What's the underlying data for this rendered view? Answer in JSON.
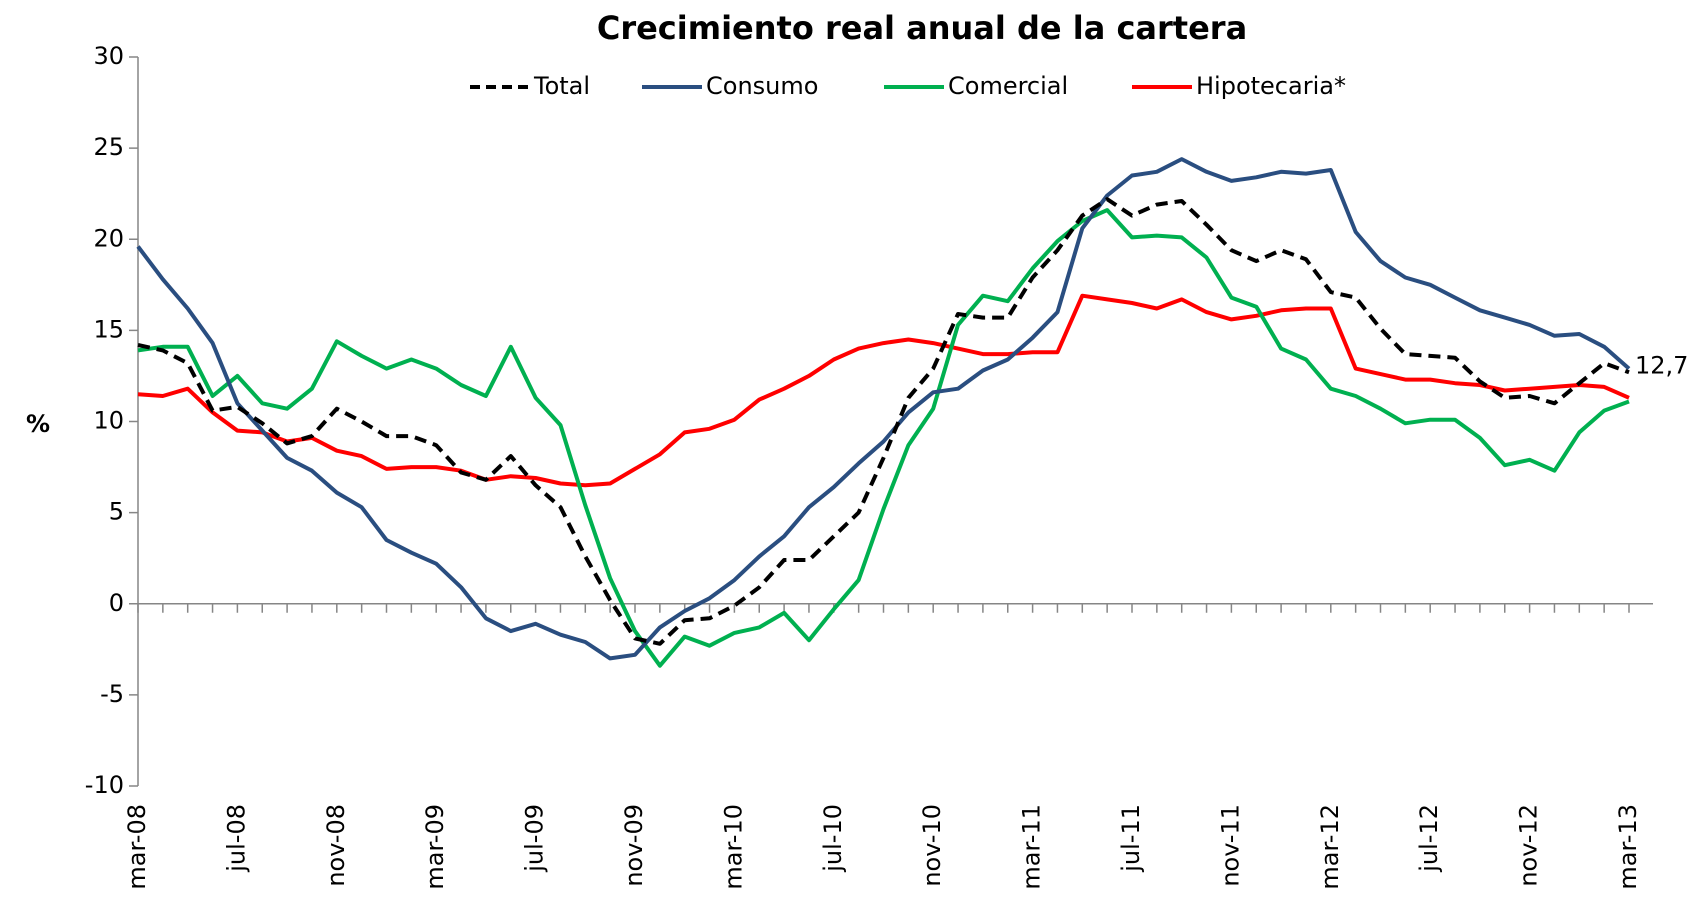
{
  "chart_data": {
    "type": "line",
    "title": "Crecimiento real anual de la cartera",
    "y_label": "%",
    "categories": [
      "mar-08",
      null,
      null,
      null,
      "jul-08",
      null,
      null,
      null,
      "nov-08",
      null,
      null,
      null,
      "mar-09",
      null,
      null,
      null,
      "jul-09",
      null,
      null,
      null,
      "nov-09",
      null,
      null,
      null,
      "mar-10",
      null,
      null,
      null,
      "jul-10",
      null,
      null,
      null,
      "nov-10",
      null,
      null,
      null,
      "mar-11",
      null,
      null,
      null,
      "jul-11",
      null,
      null,
      null,
      "nov-11",
      null,
      null,
      null,
      "mar-12",
      null,
      null,
      null,
      "jul-12",
      null,
      null,
      null,
      "nov-12",
      null,
      null,
      null,
      "mar-13"
    ],
    "series": [
      {
        "name": "Total",
        "color": "#000000",
        "dashed": true,
        "values": [
          14.2,
          13.9,
          13.2,
          10.6,
          10.8,
          9.9,
          8.8,
          9.2,
          10.7,
          10.0,
          9.2,
          9.2,
          8.7,
          7.2,
          6.8,
          8.1,
          6.5,
          5.3,
          2.6,
          0.2,
          -1.9,
          -2.2,
          -0.9,
          -0.8,
          -0.1,
          0.9,
          2.4,
          2.4,
          3.7,
          5.0,
          8.0,
          11.3,
          12.9,
          15.9,
          15.7,
          15.7,
          17.9,
          19.4,
          21.3,
          22.2,
          21.3,
          21.9,
          22.1,
          20.8,
          19.4,
          18.8,
          19.4,
          18.9,
          17.1,
          16.8,
          15.1,
          13.7,
          13.6,
          13.5,
          12.2,
          11.3,
          11.4,
          11.0,
          12.1,
          13.2,
          12.7
        ],
        "value_labels": [
          null,
          null,
          null,
          null,
          null,
          null,
          null,
          null,
          null,
          null,
          null,
          null,
          null,
          null,
          null,
          null,
          null,
          null,
          null,
          null,
          null,
          null,
          null,
          null,
          null,
          null,
          null,
          null,
          null,
          null,
          null,
          null,
          null,
          null,
          null,
          null,
          null,
          null,
          null,
          null,
          null,
          null,
          null,
          null,
          null,
          null,
          null,
          null,
          null,
          null,
          null,
          null,
          null,
          null,
          null,
          null,
          null,
          null,
          null,
          null,
          "12,7"
        ]
      },
      {
        "name": "Consumo",
        "color": "#2a4e80",
        "values": [
          19.6,
          17.8,
          16.2,
          14.3,
          11.0,
          9.5,
          8.0,
          7.3,
          6.1,
          5.3,
          3.5,
          2.8,
          2.2,
          0.9,
          -0.8,
          -1.5,
          -1.1,
          -1.7,
          -2.1,
          -3.0,
          -2.8,
          -1.3,
          -0.4,
          0.3,
          1.3,
          2.6,
          3.7,
          5.3,
          6.4,
          7.7,
          8.9,
          10.5,
          11.6,
          11.8,
          12.8,
          13.4,
          14.6,
          16.0,
          20.6,
          22.4,
          23.5,
          23.7,
          24.4,
          23.7,
          23.2,
          23.4,
          23.7,
          23.6,
          23.8,
          20.4,
          18.8,
          17.9,
          17.5,
          16.8,
          16.1,
          15.7,
          15.3,
          14.7,
          14.8,
          14.1,
          12.9
        ]
      },
      {
        "name": "Comercial",
        "color": "#00b050",
        "values": [
          13.9,
          14.1,
          14.1,
          11.4,
          12.5,
          11.0,
          10.7,
          11.8,
          14.4,
          13.6,
          12.9,
          13.4,
          12.9,
          12.0,
          11.4,
          14.1,
          11.3,
          9.8,
          5.4,
          1.4,
          -1.5,
          -3.4,
          -1.8,
          -2.3,
          -1.6,
          -1.3,
          -0.5,
          -2.0,
          -0.3,
          1.3,
          5.2,
          8.7,
          10.7,
          15.3,
          16.9,
          16.6,
          18.4,
          19.9,
          21.0,
          21.6,
          20.1,
          20.2,
          20.1,
          19.0,
          16.8,
          16.3,
          14.0,
          13.4,
          11.8,
          11.4,
          10.7,
          9.9,
          10.1,
          10.1,
          9.1,
          7.6,
          7.9,
          7.3,
          9.4,
          10.6,
          11.1
        ]
      },
      {
        "name": "Hipotecaria*",
        "color": "#ff0000",
        "values": [
          11.5,
          11.4,
          11.8,
          10.5,
          9.5,
          9.4,
          8.9,
          9.1,
          8.4,
          8.1,
          7.4,
          7.5,
          7.5,
          7.3,
          6.8,
          7.0,
          6.9,
          6.6,
          6.5,
          6.6,
          7.4,
          8.2,
          9.4,
          9.6,
          10.1,
          11.2,
          11.8,
          12.5,
          13.4,
          14.0,
          14.3,
          14.5,
          14.3,
          14.0,
          13.7,
          13.7,
          13.8,
          13.8,
          16.9,
          16.7,
          16.5,
          16.2,
          16.7,
          16.0,
          15.6,
          15.8,
          16.1,
          16.2,
          16.2,
          12.9,
          12.6,
          12.3,
          12.3,
          12.1,
          12.0,
          11.7,
          11.8,
          11.9,
          12.0,
          11.9,
          11.3
        ]
      }
    ],
    "ylim": [
      -10,
      30
    ],
    "yticks": [
      -10,
      -5,
      0,
      5,
      10,
      15,
      20,
      25,
      30
    ],
    "legend": "top",
    "grid": false
  }
}
